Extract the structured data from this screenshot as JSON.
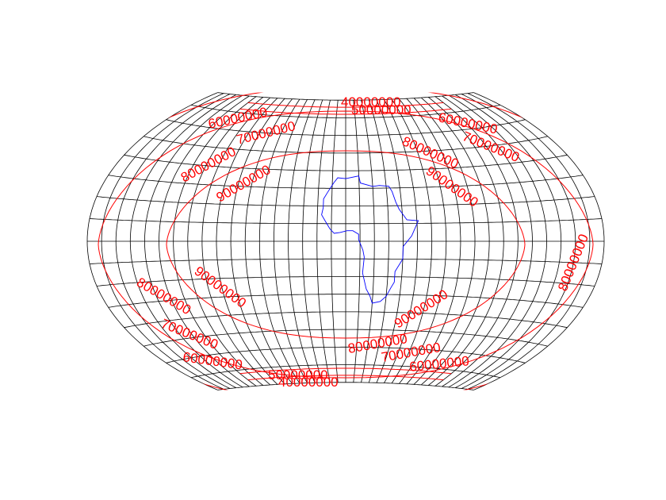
{
  "map": {
    "projection": "winkel-tripel-like pseudo-cylindrical",
    "graticule_step_degrees": 10,
    "colors": {
      "graticule": "#000000",
      "contours": "#ff0000",
      "continent": "#0000ff",
      "background": "#ffffff"
    },
    "contour_labels": [
      "40000000",
      "50000000",
      "60000000",
      "60000000",
      "70000000",
      "70000000",
      "80000000",
      "80000000",
      "90000000",
      "90000000",
      "90000000",
      "90000000",
      "80000000",
      "80000000",
      "70000000",
      "70000000",
      "60000000",
      "60000000",
      "50000000",
      "40000000",
      "80000000"
    ],
    "continent": "Africa"
  }
}
